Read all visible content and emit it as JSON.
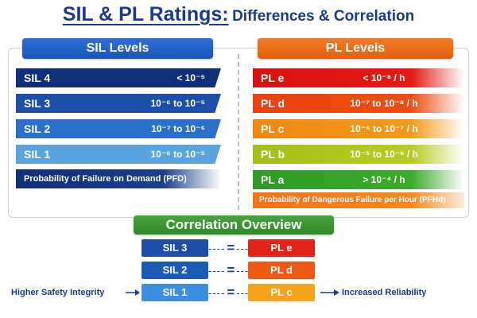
{
  "title": {
    "main": "SIL & PL Ratings:",
    "sub": "Differences & Correlation"
  },
  "sil": {
    "header": "SIL Levels",
    "rows": [
      {
        "label": "SIL 4",
        "value": "< 10⁻⁵"
      },
      {
        "label": "SIL 3",
        "value": "10⁻⁶ to 10⁻⁵"
      },
      {
        "label": "SIL 2",
        "value": "10⁻⁷ to 10⁻⁶"
      },
      {
        "label": "SIL 1",
        "value": "10⁻⁶ to 10⁻⁵"
      }
    ],
    "footer": "Probability of Failure on Demand (PFD)"
  },
  "pl": {
    "header": "PL Levels",
    "rows": [
      {
        "label": "PL e",
        "value": "< 10⁻⁸ / h"
      },
      {
        "label": "PL d",
        "value": "10⁻⁷ to 10⁻⁸ / h"
      },
      {
        "label": "PL c",
        "value": "10⁻⁶ to 10⁻⁷ / h"
      },
      {
        "label": "PL b",
        "value": "10⁻⁵ to 10⁻⁶ / h"
      },
      {
        "label": "PL a",
        "value": "> 10⁻⁴ / h"
      }
    ],
    "footer": "Probability of Dangerous Failure per Hour (PFHd)"
  },
  "correlation": {
    "header": "Correlation Overview",
    "pairs": [
      {
        "sil": "SIL 3",
        "pl": "PL e"
      },
      {
        "sil": "SIL 2",
        "pl": "PL d"
      },
      {
        "sil": "SIL 1",
        "pl": "PL c"
      }
    ],
    "connector": {
      "dash": "----",
      "equals": "="
    },
    "left_text": "Higher Safety Integrity",
    "right_text": "Increased Reliability"
  },
  "colors": {
    "title": "#1a3a8c",
    "sil_header": "#1b55b8",
    "pl_header": "#e35f0c",
    "correlation_header": "#2f8a28"
  },
  "icons": {
    "left_arrow": "arrow-right-icon",
    "right_arrow": "arrow-right-icon"
  }
}
